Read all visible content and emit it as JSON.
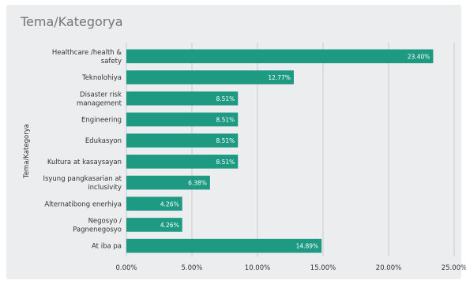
{
  "title": "Tema/Kategorya",
  "chart_data": {
    "type": "bar",
    "orientation": "horizontal",
    "title": "Tema/Kategorya",
    "ylabel": "Tema/Kategorya",
    "xlabel": "",
    "categories": [
      [
        "Healthcare /health &",
        "safety"
      ],
      [
        "Teknolohiya"
      ],
      [
        "Disaster risk",
        "management"
      ],
      [
        "Engineering"
      ],
      [
        "Edukasyon"
      ],
      [
        "Kultura at kasaysayan"
      ],
      [
        "Isyung pangkasarian at",
        "inclusivity"
      ],
      [
        "Alternatibong enerhiya"
      ],
      [
        "Negosyo /",
        "Pagnenegosyo"
      ],
      [
        "At iba pa"
      ]
    ],
    "values": [
      23.4,
      12.77,
      8.51,
      8.51,
      8.51,
      8.51,
      6.38,
      4.26,
      4.26,
      14.89
    ],
    "value_labels": [
      "23.40%",
      "12.77%",
      "8.51%",
      "8.51%",
      "8.51%",
      "8.51%",
      "6.38%",
      "4.26%",
      "4.26%",
      "14.89%"
    ],
    "xlim": [
      0,
      25
    ],
    "xticks": [
      0,
      5,
      10,
      15,
      20,
      25
    ],
    "xtick_labels": [
      "0.00%",
      "5.00%",
      "10.00%",
      "15.00%",
      "20.00%",
      "25.00%"
    ],
    "grid": true,
    "legend": "none",
    "bar_color": "#1f9a82",
    "grid_color": "#c9cccd",
    "background": "#ebedee"
  }
}
